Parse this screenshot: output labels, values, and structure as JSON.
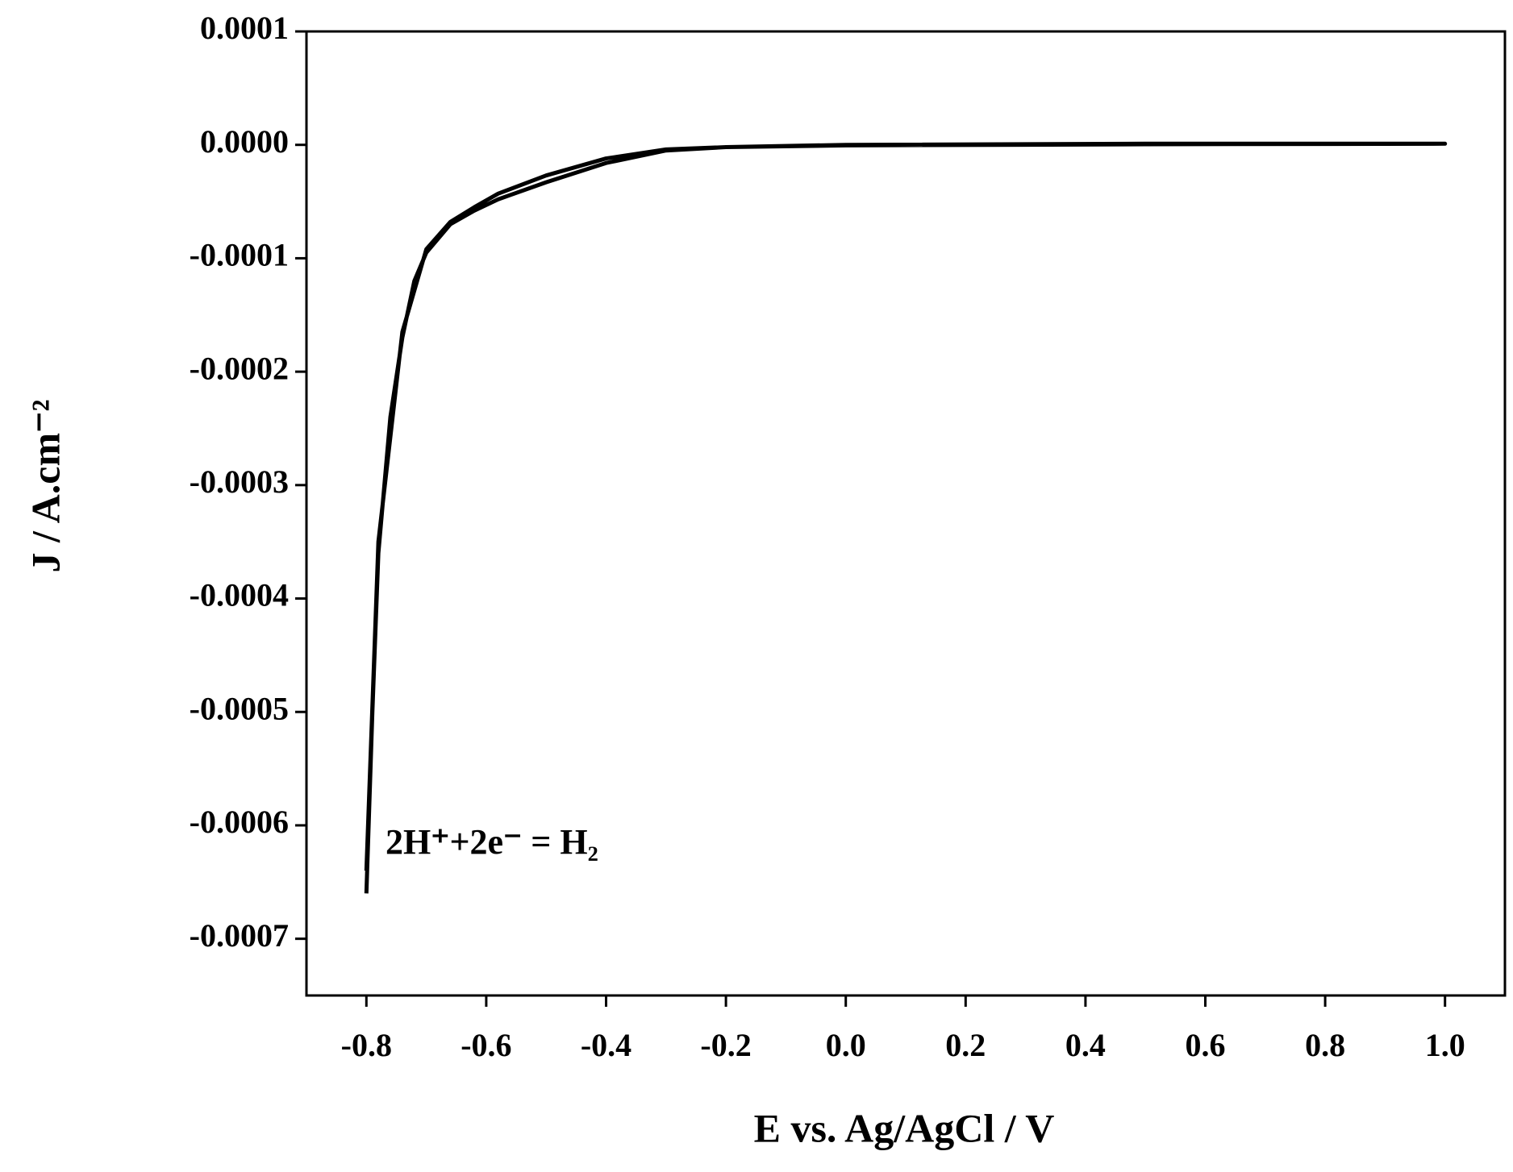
{
  "chart_data": {
    "type": "line",
    "xlabel": "E vs. Ag/AgCl / V",
    "ylabel": "J / A.cm⁻²",
    "annotation": "2H⁺+2e⁻ = H₂",
    "x": [
      -0.8,
      -0.79,
      -0.78,
      -0.76,
      -0.74,
      -0.72,
      -0.7,
      -0.66,
      -0.62,
      -0.58,
      -0.5,
      -0.4,
      -0.3,
      -0.2,
      0.0,
      0.5,
      1.0,
      0.5,
      0.0,
      -0.2,
      -0.3,
      -0.4,
      -0.5,
      -0.58,
      -0.62,
      -0.66,
      -0.7,
      -0.74,
      -0.78,
      -0.8
    ],
    "values": [
      -0.00066,
      -0.0005,
      -0.00036,
      -0.00024,
      -0.00017,
      -0.00012,
      -9.5e-05,
      -7e-05,
      -5.8e-05,
      -4.8e-05,
      -3.3e-05,
      -1.6e-05,
      -5e-06,
      -2e-06,
      0,
      1e-06,
      1e-06,
      5e-07,
      -5e-07,
      -2e-06,
      -4e-06,
      -1.2e-05,
      -2.7e-05,
      -4.3e-05,
      -5.5e-05,
      -6.8e-05,
      -9.2e-05,
      -0.000165,
      -0.00035,
      -0.00064
    ],
    "color": "#000000",
    "xlim": [
      -0.9,
      1.1
    ],
    "ylim": [
      -0.00075,
      0.0001
    ],
    "xticks": [
      -0.8,
      -0.6,
      -0.4,
      -0.2,
      {
        "value": 0,
        "label": "0.0"
      },
      0.2,
      0.4,
      0.6,
      0.8,
      {
        "value": 1,
        "label": "1.0"
      }
    ],
    "yticks": [
      0.0001,
      {
        "value": 0,
        "label": "0.0000"
      },
      -0.0001,
      -0.0002,
      -0.0003,
      -0.0004,
      -0.0005,
      -0.0006,
      -0.0007
    ]
  }
}
